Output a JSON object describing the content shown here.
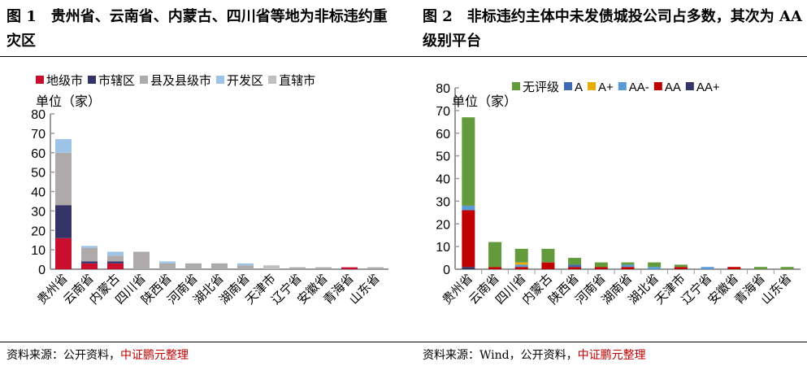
{
  "panels": [
    {
      "title": "图 1　贵州省、云南省、内蒙古、四川省等地为非标违约重灾区",
      "source_prefix": "资料来源：公开资料，",
      "source_org": "中证鹏元整理"
    },
    {
      "title": "图 2　非标违约主体中未发债城投公司占多数，其次为 AA 级别平台",
      "source_prefix": "资料来源：Wind，公开资料，",
      "source_org": "中证鹏元整理"
    }
  ],
  "chart_data": [
    {
      "type": "bar",
      "stacked": true,
      "unit_label": "单位（家）",
      "ylim": [
        0,
        80
      ],
      "yticks": [
        0,
        10,
        20,
        30,
        40,
        50,
        60,
        70,
        80
      ],
      "legend_position": "top",
      "categories": [
        "贵州省",
        "云南省",
        "内蒙古",
        "四川省",
        "陕西省",
        "河南省",
        "湖北省",
        "湖南省",
        "天津市",
        "辽宁省",
        "安徽省",
        "青海省",
        "山东省"
      ],
      "series": [
        {
          "name": "地级市",
          "color": "#c8102e",
          "values": [
            16,
            3,
            3,
            0,
            0,
            0,
            0,
            0,
            0,
            0,
            0,
            1,
            0
          ]
        },
        {
          "name": "市辖区",
          "color": "#333366",
          "values": [
            17,
            1,
            1,
            0,
            0,
            0,
            0,
            0,
            0,
            0,
            0,
            0,
            0
          ]
        },
        {
          "name": "县及县级市",
          "color": "#aeaaaa",
          "values": [
            27,
            7,
            3,
            9,
            3,
            3,
            3,
            2,
            0,
            1,
            1,
            0,
            1
          ]
        },
        {
          "name": "开发区",
          "color": "#9dc3e6",
          "values": [
            7,
            1,
            2,
            0,
            1,
            0,
            0,
            1,
            0,
            0,
            0,
            0,
            0
          ]
        },
        {
          "name": "直辖市",
          "color": "#bfbfbf",
          "values": [
            0,
            0,
            0,
            0,
            0,
            0,
            0,
            0,
            2,
            0,
            0,
            0,
            0
          ]
        }
      ]
    },
    {
      "type": "bar",
      "stacked": true,
      "unit_label": "单位（家）",
      "ylim": [
        0,
        80
      ],
      "yticks": [
        0,
        10,
        20,
        30,
        40,
        50,
        60,
        70,
        80
      ],
      "legend_position": "top",
      "categories": [
        "贵州省",
        "云南省",
        "四川省",
        "内蒙古",
        "陕西省",
        "河南省",
        "湖南省",
        "湖北省",
        "天津市",
        "辽宁省",
        "安徽省",
        "青海省",
        "山东省"
      ],
      "series": [
        {
          "name": "AA+",
          "color": "#333366",
          "values": [
            1,
            0,
            0,
            0,
            0,
            0,
            0,
            0,
            0,
            0,
            0,
            0,
            0
          ]
        },
        {
          "name": "AA",
          "color": "#c00000",
          "values": [
            25,
            1,
            1,
            3,
            1,
            1,
            1,
            0,
            1,
            0,
            1,
            0,
            0
          ]
        },
        {
          "name": "AA-",
          "color": "#5b9bd5",
          "values": [
            2,
            0,
            1,
            0,
            0,
            0,
            1,
            1,
            0,
            1,
            0,
            0,
            0
          ]
        },
        {
          "name": "A",
          "color": "#4169b0",
          "values": [
            0,
            0,
            0,
            0,
            1,
            0,
            0,
            0,
            0,
            0,
            0,
            0,
            0
          ]
        },
        {
          "name": "A+",
          "color": "#e6ac00",
          "values": [
            0,
            0,
            1,
            0,
            0,
            0,
            0,
            0,
            0,
            0,
            0,
            0,
            0
          ]
        },
        {
          "name": "无评级",
          "color": "#629a3c",
          "values": [
            39,
            11,
            6,
            6,
            3,
            2,
            1,
            2,
            1,
            0,
            0,
            1,
            1
          ]
        }
      ],
      "legend_order": [
        "无评级",
        "A",
        "A+",
        "AA-",
        "AA",
        "AA+"
      ]
    }
  ]
}
